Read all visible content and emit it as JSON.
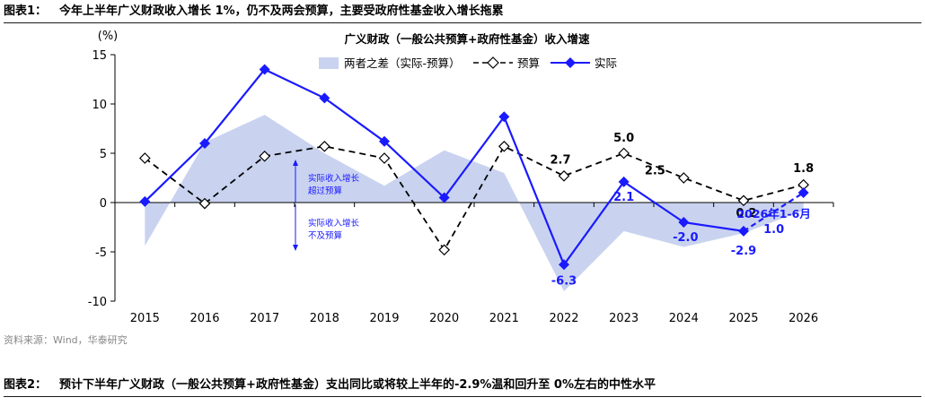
{
  "figure1": {
    "label": "图表1：",
    "caption": "今年上半年广义财政收入增长 1%，仍不及两会预算，主要受政府性基金收入增长拖累"
  },
  "figure2": {
    "label": "图表2：",
    "caption": "预计下半年广义财政（一般公共预算+政府性基金）支出同比或将较上半年的-2.9%温和回升至 0%左右的中性水平"
  },
  "source": "资料来源：Wind，华泰研究",
  "colors": {
    "actual": "#1a1aff",
    "budget": "#000000",
    "gap": "#c9d3f0"
  },
  "chart_data": {
    "type": "line",
    "title": "广义财政（一般公共预算+政府性基金）收入增速",
    "unit_label": "(%)",
    "categories": [
      "2015",
      "2016",
      "2017",
      "2018",
      "2019",
      "2020",
      "2021",
      "2022",
      "2023",
      "2024",
      "2025",
      "2026"
    ],
    "ylim": [
      -10,
      15
    ],
    "yticks": [
      "15",
      "10",
      "5",
      "0",
      "-5",
      "-10"
    ],
    "series": [
      {
        "name": "两者之差（实际-预算）",
        "kind": "area",
        "values": [
          -4.4,
          6.1,
          8.9,
          5.0,
          1.7,
          5.3,
          3.0,
          -9.0,
          -2.9,
          -4.5,
          -3.1,
          -0.8
        ]
      },
      {
        "name": "预算",
        "kind": "line-dashed",
        "values": [
          4.5,
          -0.1,
          4.7,
          5.7,
          4.5,
          -4.8,
          5.7,
          2.7,
          5.0,
          2.5,
          0.2,
          1.8
        ]
      },
      {
        "name": "实际",
        "kind": "line-solid",
        "values": [
          0.1,
          6.0,
          13.5,
          10.6,
          6.2,
          0.5,
          8.7,
          -6.3,
          2.1,
          -2.0,
          -2.9,
          1.0
        ]
      }
    ],
    "data_labels": {
      "budget": [
        "2.7",
        "5.0",
        "2.5",
        "0.2",
        "1.8"
      ],
      "actual": [
        "-6.3",
        "2.1",
        "-2.0",
        "-2.9",
        "1.0"
      ],
      "h1_2026": "2026年1-6月"
    },
    "annotations": {
      "up": [
        "实际收入增长",
        "超过预算"
      ],
      "down": [
        "实际收入增长",
        "不及预算"
      ]
    }
  }
}
